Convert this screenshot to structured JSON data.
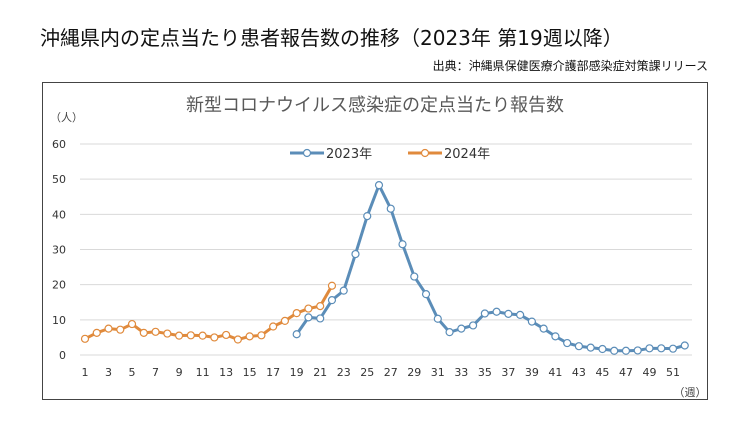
{
  "header": {
    "title": "沖縄県内の定点当たり患者報告数の推移（2023年 第19週以降）",
    "source": "出典：沖縄県保健医療介護部感染症対策課リリース"
  },
  "chart_data": {
    "type": "line",
    "title": "新型コロナウイルス感染症の定点当たり報告数",
    "ylabel": "（人）",
    "xlabel": "（週）",
    "ylim": [
      0,
      60
    ],
    "yticks": [
      0,
      10,
      20,
      30,
      40,
      50,
      60
    ],
    "xlim": [
      1,
      52
    ],
    "xticks": [
      1,
      3,
      5,
      7,
      9,
      11,
      13,
      15,
      17,
      19,
      21,
      23,
      25,
      27,
      29,
      31,
      33,
      35,
      37,
      39,
      41,
      43,
      45,
      47,
      49,
      51
    ],
    "grid": true,
    "legend_position": "top-center",
    "series": [
      {
        "name": "2023年",
        "color": "#5b8db8",
        "x": [
          19,
          20,
          21,
          22,
          23,
          24,
          25,
          26,
          27,
          28,
          29,
          30,
          31,
          32,
          33,
          34,
          35,
          36,
          37,
          38,
          39,
          40,
          41,
          42,
          43,
          44,
          45,
          46,
          47,
          48,
          49,
          50,
          51,
          52
        ],
        "values": [
          5.9,
          10.7,
          10.4,
          15.6,
          18.3,
          28.7,
          39.5,
          48.3,
          41.6,
          31.5,
          22.3,
          17.3,
          10.3,
          6.5,
          7.5,
          8.4,
          11.8,
          12.3,
          11.7,
          11.4,
          9.5,
          7.5,
          5.3,
          3.4,
          2.5,
          2.1,
          1.7,
          1.2,
          1.2,
          1.3,
          1.9,
          1.9,
          1.8,
          2.7
        ]
      },
      {
        "name": "2024年",
        "color": "#e08a3c",
        "x": [
          1,
          2,
          3,
          4,
          5,
          6,
          7,
          8,
          9,
          10,
          11,
          12,
          13,
          14,
          15,
          16,
          17,
          18,
          19,
          20,
          21,
          22
        ],
        "values": [
          4.6,
          6.3,
          7.5,
          7.2,
          8.8,
          6.3,
          6.6,
          6.1,
          5.5,
          5.6,
          5.5,
          5.0,
          5.7,
          4.4,
          5.3,
          5.6,
          8.1,
          9.7,
          11.9,
          13.2,
          13.9,
          19.7
        ]
      }
    ]
  }
}
